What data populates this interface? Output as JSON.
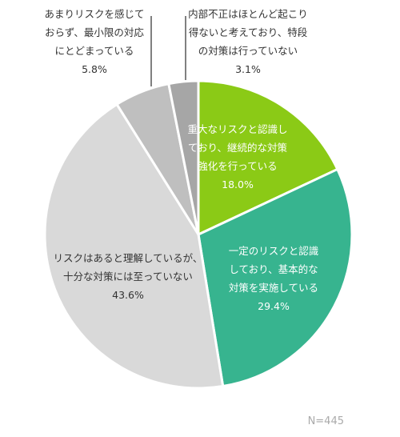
{
  "chart_data": {
    "type": "pie",
    "title": "",
    "start_angle_deg": 0,
    "direction": "clockwise",
    "slices": [
      {
        "label": [
          "重大なリスクと認識し",
          "ており、継続的な対策",
          "強化を行っている"
        ],
        "value": 18.0,
        "value_text": "18.0%",
        "color": "#8bca16",
        "label_color": "#ffffff",
        "label_placement": "inside"
      },
      {
        "label": [
          "一定のリスクと認識",
          "しており、基本的な",
          "対策を実施している"
        ],
        "value": 29.4,
        "value_text": "29.4%",
        "color": "#37b48f",
        "label_color": "#ffffff",
        "label_placement": "inside"
      },
      {
        "label": [
          "リスクはあると理解しているが、",
          "十分な対策には至っていない"
        ],
        "value": 43.6,
        "value_text": "43.6%",
        "color": "#d9d9d9",
        "label_color": "#333333",
        "label_placement": "inside"
      },
      {
        "label": [
          "あまりリスクを感じて",
          "おらず、最小限の対応",
          "にとどまっている"
        ],
        "value": 5.8,
        "value_text": "5.8%",
        "color": "#bfbfbf",
        "label_color": "#333333",
        "label_placement": "outside-top-left"
      },
      {
        "label": [
          "内部不正はほとんど起こり",
          "得ないと考えており、特段",
          "の対策は行っていない"
        ],
        "value": 3.1,
        "value_text": "3.1%",
        "color": "#a6a6a6",
        "label_color": "#333333",
        "label_placement": "outside-top-right"
      }
    ],
    "sample_size": "N=445",
    "legend": "none"
  }
}
